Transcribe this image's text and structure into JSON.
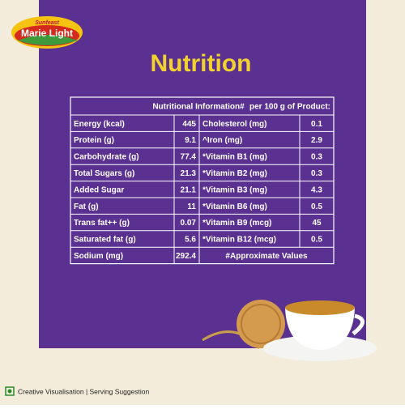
{
  "logo": {
    "brand": "Sunfeast",
    "name": "Marie Light"
  },
  "title": "Nutrition",
  "table": {
    "title": "Nutritional Information#",
    "basis": "per 100 g of Product:",
    "rows": [
      [
        "Energy (kcal)",
        "445",
        "Cholesterol (mg)",
        "0.1"
      ],
      [
        "Protein (g)",
        "9.1",
        "^Iron (mg)",
        "2.9"
      ],
      [
        "Carbohydrate (g)",
        "77.4",
        "*Vitamin B1 (mg)",
        "0.3"
      ],
      [
        "Total Sugars (g)",
        "21.3",
        "*Vitamin B2 (mg)",
        "0.3"
      ],
      [
        "Added Sugar",
        "21.1",
        "*Vitamin B3 (mg)",
        "4.3"
      ],
      [
        "Fat (g)",
        "11",
        "*Vitamin B6 (mg)",
        "0.5"
      ],
      [
        "Trans fat++ (g)",
        "0.07",
        "*Vitamin B9 (mcg)",
        "45"
      ],
      [
        "Saturated fat (g)",
        "5.6",
        "*Vitamin B12 (mcg)",
        "0.5"
      ],
      [
        "Sodium (mg)",
        "292.4",
        "#Approximate Values"
      ]
    ]
  },
  "footer": "Creative Visualisation | Serving Suggestion"
}
